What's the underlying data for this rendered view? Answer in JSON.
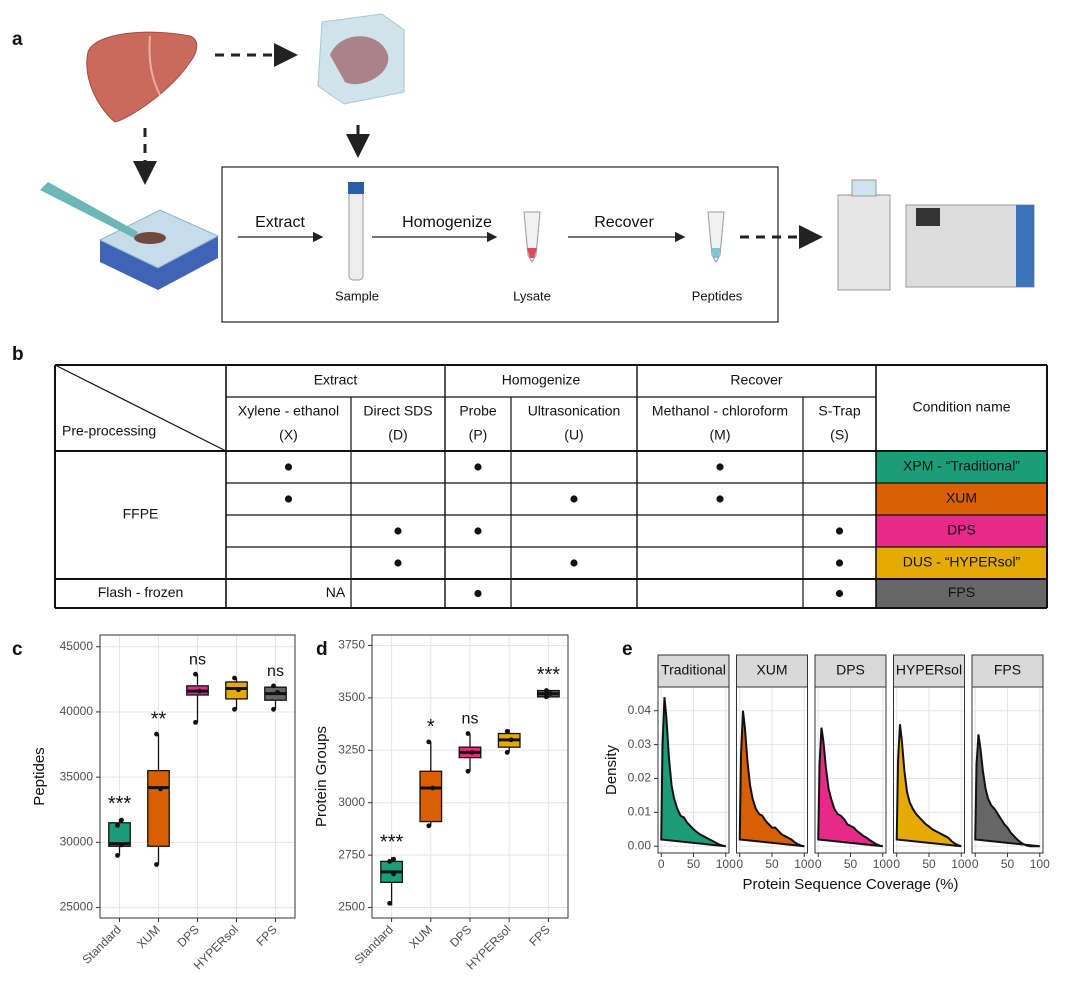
{
  "panel_labels": [
    "a",
    "b",
    "c",
    "d",
    "e"
  ],
  "workflow": {
    "steps": [
      "Extract",
      "Homogenize",
      "Recover"
    ],
    "products": [
      "Sample",
      "Lysate",
      "Peptides"
    ]
  },
  "table": {
    "corner": "Pre-processing",
    "groups": [
      "Extract",
      "Homogenize",
      "Recover"
    ],
    "methods": [
      {
        "name": "Xylene - ethanol",
        "code": "(X)"
      },
      {
        "name": "Direct SDS",
        "code": "(D)"
      },
      {
        "name": "Probe",
        "code": "(P)"
      },
      {
        "name": "Ultrasonication",
        "code": "(U)"
      },
      {
        "name": "Methanol - chloroform",
        "code": "(M)"
      },
      {
        "name": "S-Trap",
        "code": "(S)"
      }
    ],
    "condition_header": "Condition name",
    "sections": [
      {
        "label": "FFPE",
        "rows": [
          {
            "checks": [
              true,
              false,
              true,
              false,
              true,
              false
            ],
            "condition": "XPM - “Traditional”",
            "color": "#1b9e77",
            "text_color": "#ffffff"
          },
          {
            "checks": [
              true,
              false,
              false,
              true,
              true,
              false
            ],
            "condition": "XUM",
            "color": "#d95f02",
            "text_color": "#ffffff"
          },
          {
            "checks": [
              false,
              true,
              true,
              false,
              false,
              true
            ],
            "condition": "DPS",
            "color": "#e7298a",
            "text_color": "#ffffff"
          },
          {
            "checks": [
              false,
              true,
              false,
              true,
              false,
              true
            ],
            "condition": "DUS - “HYPERsol”",
            "color": "#e6ab02",
            "text_color": "#222222"
          }
        ]
      },
      {
        "label": "Flash - frozen",
        "na": "NA",
        "rows": [
          {
            "checks": [
              false,
              false,
              true,
              false,
              false,
              true
            ],
            "condition": "FPS",
            "color": "#666666",
            "text_color": "#ffffff"
          }
        ]
      }
    ]
  },
  "chart_data": [
    {
      "type": "box",
      "ylabel": "Peptides",
      "categories": [
        "Standard",
        "XUM",
        "DPS",
        "HYPERsol",
        "FPS"
      ],
      "colors": [
        "#1b9e77",
        "#d95f02",
        "#e7298a",
        "#e6ab02",
        "#666666"
      ],
      "boxes": [
        {
          "whisker_low": 29000,
          "q1": 29700,
          "median": 29900,
          "q3": 31500,
          "whisker_high": 31800,
          "points": [
            29000,
            29800,
            31300,
            31700
          ]
        },
        {
          "whisker_low": 28300,
          "q1": 29700,
          "median": 34200,
          "q3": 35500,
          "whisker_high": 38300,
          "points": [
            28300,
            34100,
            38300
          ]
        },
        {
          "whisker_low": 39200,
          "q1": 41300,
          "median": 41600,
          "q3": 42000,
          "whisker_high": 42900,
          "points": [
            39200,
            41600,
            42900
          ]
        },
        {
          "whisker_low": 40200,
          "q1": 41000,
          "median": 41800,
          "q3": 42300,
          "whisker_high": 42600,
          "points": [
            40200,
            41700,
            42600
          ]
        },
        {
          "whisker_low": 40200,
          "q1": 40900,
          "median": 41400,
          "q3": 41900,
          "whisker_high": 42000,
          "points": [
            40200,
            41500,
            42000
          ]
        }
      ],
      "annotations": [
        "***",
        "**",
        "ns",
        null,
        "ns"
      ],
      "ylim": [
        24200,
        45900
      ],
      "yticks": [
        25000,
        30000,
        35000,
        40000,
        45000
      ],
      "grid": true
    },
    {
      "type": "box",
      "ylabel": "Protein Groups",
      "categories": [
        "Standard",
        "XUM",
        "DPS",
        "HYPERsol",
        "FPS"
      ],
      "colors": [
        "#1b9e77",
        "#d95f02",
        "#e7298a",
        "#e6ab02",
        "#666666"
      ],
      "boxes": [
        {
          "whisker_low": 2510,
          "q1": 2620,
          "median": 2670,
          "q3": 2720,
          "whisker_high": 2740,
          "points": [
            2520,
            2660,
            2720,
            2730
          ]
        },
        {
          "whisker_low": 2890,
          "q1": 2910,
          "median": 3070,
          "q3": 3150,
          "whisker_high": 3290,
          "points": [
            2890,
            3070,
            3290
          ]
        },
        {
          "whisker_low": 3150,
          "q1": 3215,
          "median": 3240,
          "q3": 3265,
          "whisker_high": 3330,
          "points": [
            3150,
            3240,
            3330
          ]
        },
        {
          "whisker_low": 3240,
          "q1": 3265,
          "median": 3300,
          "q3": 3330,
          "whisker_high": 3350,
          "points": [
            3240,
            3300,
            3340
          ]
        },
        {
          "whisker_low": 3500,
          "q1": 3505,
          "median": 3520,
          "q3": 3535,
          "whisker_high": 3540,
          "points": [
            3505,
            3520,
            3535
          ]
        }
      ],
      "annotations": [
        "***",
        "*",
        "ns",
        null,
        "***"
      ],
      "ylim": [
        2450,
        3800
      ],
      "yticks": [
        2500,
        2750,
        3000,
        3250,
        3500,
        3750
      ],
      "grid": true
    },
    {
      "type": "density",
      "xlabel": "Protein Sequence Coverage (%)",
      "ylabel": "Density",
      "x": [
        0,
        2,
        5,
        8,
        12,
        16,
        20,
        25,
        30,
        35,
        40,
        45,
        50,
        55,
        60,
        65,
        70,
        75,
        80,
        85,
        90,
        95,
        100
      ],
      "series": [
        {
          "name": "Traditional",
          "color": "#1b9e77",
          "values": [
            0.002,
            0.03,
            0.044,
            0.038,
            0.026,
            0.018,
            0.014,
            0.011,
            0.009,
            0.0085,
            0.007,
            0.006,
            0.005,
            0.0042,
            0.0035,
            0.003,
            0.0025,
            0.002,
            0.0015,
            0.001,
            0.0005,
            0.0002,
            0
          ]
        },
        {
          "name": "XUM",
          "color": "#d95f02",
          "values": [
            0.002,
            0.027,
            0.04,
            0.035,
            0.025,
            0.018,
            0.014,
            0.011,
            0.0095,
            0.009,
            0.0075,
            0.0065,
            0.0055,
            0.0055,
            0.0045,
            0.0035,
            0.003,
            0.0025,
            0.002,
            0.0012,
            0.0006,
            0.0002,
            0
          ]
        },
        {
          "name": "DPS",
          "color": "#e7298a",
          "values": [
            0.002,
            0.024,
            0.035,
            0.031,
            0.023,
            0.017,
            0.014,
            0.011,
            0.0095,
            0.009,
            0.008,
            0.0065,
            0.006,
            0.0055,
            0.0045,
            0.0038,
            0.003,
            0.0025,
            0.0018,
            0.0012,
            0.0006,
            0.0002,
            0
          ]
        },
        {
          "name": "HYPERsol",
          "color": "#e6ab02",
          "values": [
            0.002,
            0.025,
            0.036,
            0.031,
            0.022,
            0.016,
            0.013,
            0.011,
            0.0095,
            0.0085,
            0.0075,
            0.0065,
            0.0058,
            0.005,
            0.0045,
            0.004,
            0.0035,
            0.003,
            0.0025,
            0.0015,
            0.0008,
            0.0003,
            0
          ]
        },
        {
          "name": "FPS",
          "color": "#666666",
          "values": [
            0.002,
            0.024,
            0.033,
            0.029,
            0.022,
            0.017,
            0.014,
            0.012,
            0.011,
            0.0095,
            0.008,
            0.0065,
            0.0055,
            0.004,
            0.003,
            0.002,
            0.0012,
            0.0006,
            0.0002,
            0,
            0,
            0,
            0
          ]
        }
      ],
      "xlim": [
        -5,
        105
      ],
      "xticks": [
        0,
        50,
        100
      ],
      "ylim": [
        -0.002,
        0.047
      ],
      "yticks": [
        {
          "value": 0,
          "label": "0.00"
        },
        {
          "value": 0.01,
          "label": "0.01"
        },
        {
          "value": 0.02,
          "label": "0.02"
        },
        {
          "value": 0.03,
          "label": "0.03"
        },
        {
          "value": 0.04,
          "label": "0.04"
        }
      ],
      "grid": true
    }
  ]
}
